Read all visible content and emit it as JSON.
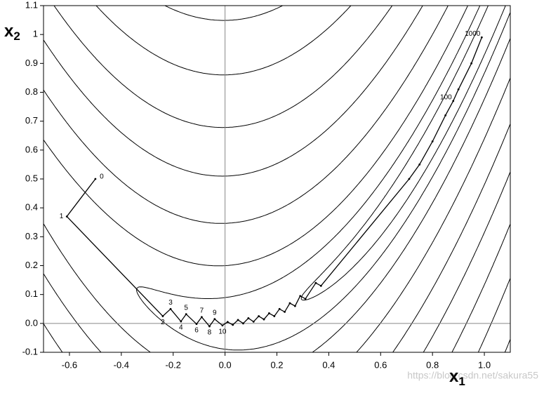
{
  "chart_data": {
    "type": "contour",
    "xlabel": {
      "text": "x",
      "subscript": "1"
    },
    "ylabel": {
      "text": "x",
      "subscript": "2"
    },
    "watermark": "https://blog.csdn.net/sakura55",
    "xlim": [
      -0.7,
      1.1
    ],
    "ylim": [
      -0.1,
      1.1
    ],
    "xticks": [
      -0.6,
      -0.4,
      -0.2,
      {
        "value": 0,
        "label": "0.0"
      },
      0.2,
      0.4,
      0.6,
      0.8,
      {
        "value": 1,
        "label": "1.0"
      }
    ],
    "yticks": [
      -0.1,
      {
        "value": 0,
        "label": "0.0"
      },
      0.1,
      0.2,
      0.3,
      0.4,
      0.5,
      0.6,
      0.7,
      0.8,
      0.9,
      1,
      1.1
    ],
    "contour_levels": [
      0.5,
      1.8,
      5,
      13,
      27,
      47,
      75,
      111,
      160,
      220,
      290,
      370
    ],
    "path": {
      "x": [
        -0.5,
        -0.61,
        -0.24,
        -0.21,
        -0.17,
        -0.15,
        -0.11,
        -0.09,
        -0.06,
        -0.04,
        -0.01,
        0.01,
        0.03,
        0.05,
        0.07,
        0.09,
        0.11,
        0.13,
        0.15,
        0.17,
        0.19,
        0.21,
        0.23,
        0.25,
        0.27,
        0.29,
        0.31,
        0.35,
        0.37,
        0.71,
        0.75,
        0.8,
        0.85,
        0.88,
        0.9,
        0.95,
        0.99
      ],
      "y": [
        0.5,
        0.37,
        0.025,
        0.05,
        0.007,
        0.032,
        -0.002,
        0.022,
        -0.01,
        0.015,
        -0.007,
        0.005,
        -0.005,
        0.012,
        0.0,
        0.018,
        0.006,
        0.025,
        0.014,
        0.035,
        0.025,
        0.05,
        0.04,
        0.07,
        0.06,
        0.095,
        0.085,
        0.14,
        0.13,
        0.5,
        0.55,
        0.63,
        0.72,
        0.77,
        0.81,
        0.9,
        0.99
      ],
      "point_labels": [
        "0",
        "1",
        "2",
        "3",
        "4",
        "5",
        "6",
        "7",
        "8",
        "9",
        "10",
        null,
        null,
        null,
        null,
        null,
        null,
        null,
        null,
        null,
        null,
        null,
        null,
        null,
        null,
        null,
        null,
        null,
        null,
        null,
        null,
        null,
        null,
        "100",
        null,
        null,
        "1000"
      ]
    }
  }
}
